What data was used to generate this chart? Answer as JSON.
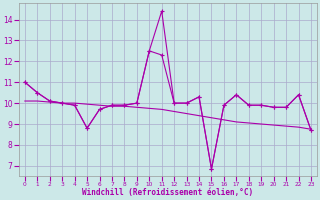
{
  "xlabel": "Windchill (Refroidissement éolien,°C)",
  "background_color": "#cce8e8",
  "grid_color": "#aaaacc",
  "line_color": "#aa00aa",
  "x_hours": [
    0,
    1,
    2,
    3,
    4,
    5,
    6,
    7,
    8,
    9,
    10,
    11,
    12,
    13,
    14,
    15,
    16,
    17,
    18,
    19,
    20,
    21,
    22,
    23
  ],
  "line_jagged_y": [
    11.0,
    10.5,
    10.1,
    10.0,
    9.9,
    8.8,
    9.7,
    9.9,
    9.9,
    10.0,
    12.5,
    14.4,
    10.0,
    10.0,
    10.3,
    6.85,
    9.9,
    10.4,
    9.9,
    9.9,
    9.8,
    9.8,
    10.4,
    8.7
  ],
  "line_smooth_y": [
    10.1,
    10.1,
    10.05,
    10.0,
    10.0,
    9.95,
    9.9,
    9.85,
    9.85,
    9.8,
    9.75,
    9.7,
    9.6,
    9.5,
    9.4,
    9.3,
    9.2,
    9.1,
    9.05,
    9.0,
    8.95,
    8.9,
    8.85,
    8.75
  ],
  "line_mid_y": [
    11.0,
    10.5,
    10.1,
    10.0,
    9.9,
    8.8,
    9.7,
    9.9,
    9.9,
    10.0,
    12.5,
    12.3,
    10.0,
    10.0,
    10.3,
    6.85,
    9.9,
    10.4,
    9.9,
    9.9,
    9.8,
    9.8,
    10.4,
    8.7
  ],
  "ylim": [
    6.5,
    14.8
  ],
  "yticks": [
    7,
    8,
    9,
    10,
    11,
    12,
    13,
    14
  ],
  "xlim": [
    -0.5,
    23.5
  ]
}
